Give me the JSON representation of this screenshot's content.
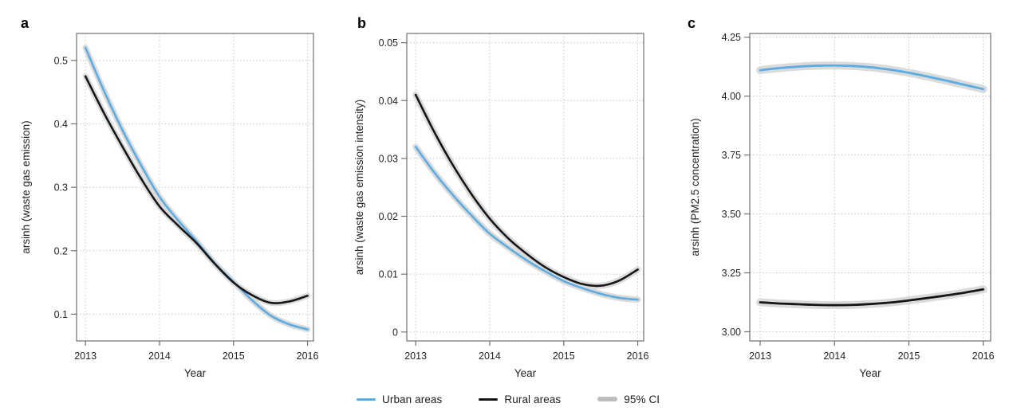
{
  "colors": {
    "urban": "#5AACE1",
    "rural": "#161616",
    "ci_band": "#DBDBDB",
    "ci_legend": "#BDBDBD"
  },
  "legend": {
    "items": [
      {
        "key": "urban",
        "label": "Urban areas"
      },
      {
        "key": "rural",
        "label": "Rural areas"
      },
      {
        "key": "ci",
        "label": "95% CI"
      }
    ]
  },
  "chart_data": [
    {
      "type": "line",
      "panel_label": "a",
      "title": "",
      "xlabel": "Year",
      "ylabel": "arsinh (waste gas emission)",
      "grid": "dotted",
      "legend_position": "bottom-center-shared",
      "x_domain": [
        2012.88,
        2016.08
      ],
      "y_domain": [
        0.0578,
        0.5425
      ],
      "x_ticks": [
        2013,
        2014,
        2015,
        2016
      ],
      "x_tick_labels": [
        "2013",
        "2014",
        "2015",
        "2016"
      ],
      "y_ticks": [
        0.1,
        0.2,
        0.3,
        0.4,
        0.5
      ],
      "y_tick_labels": [
        "0.1",
        "0.2",
        "0.3",
        "0.4",
        "0.5"
      ],
      "x": [
        2013,
        2013.25,
        2013.5,
        2013.75,
        2014,
        2014.25,
        2014.5,
        2014.75,
        2015,
        2015.25,
        2015.5,
        2015.75,
        2016
      ],
      "series": [
        {
          "name": "Urban areas",
          "color_key": "urban",
          "ci": "95% CI band",
          "values": [
            0.52,
            0.452,
            0.39,
            0.335,
            0.285,
            0.248,
            0.215,
            0.18,
            0.151,
            0.122,
            0.098,
            0.084,
            0.076
          ]
        },
        {
          "name": "Rural areas",
          "color_key": "rural",
          "ci": "95% CI band",
          "values": [
            0.475,
            0.417,
            0.364,
            0.314,
            0.27,
            0.24,
            0.212,
            0.179,
            0.15,
            0.13,
            0.118,
            0.12,
            0.129
          ]
        }
      ]
    },
    {
      "type": "line",
      "panel_label": "b",
      "title": "",
      "xlabel": "Year",
      "ylabel": "arsinh (waste gas emission intensity)",
      "grid": "dotted",
      "legend_position": "bottom-center-shared",
      "x_domain": [
        2012.88,
        2016.08
      ],
      "y_domain": [
        -0.00154,
        0.0516
      ],
      "x_ticks": [
        2013,
        2014,
        2015,
        2016
      ],
      "x_tick_labels": [
        "2013",
        "2014",
        "2015",
        "2016"
      ],
      "y_ticks": [
        0,
        0.01,
        0.02,
        0.03,
        0.04,
        0.05
      ],
      "y_tick_labels": [
        "0",
        "0.01",
        "0.02",
        "0.03",
        "0.04",
        "0.05"
      ],
      "x": [
        2013,
        2013.25,
        2013.5,
        2013.75,
        2014,
        2014.25,
        2014.5,
        2014.75,
        2015,
        2015.25,
        2015.5,
        2015.75,
        2016
      ],
      "series": [
        {
          "name": "Urban areas",
          "color_key": "urban",
          "ci": "95% CI band",
          "values": [
            0.032,
            0.0276,
            0.0237,
            0.0202,
            0.017,
            0.0146,
            0.0124,
            0.0105,
            0.0088,
            0.0076,
            0.0066,
            0.0059,
            0.0056
          ]
        },
        {
          "name": "Rural areas",
          "color_key": "rural",
          "ci": "95% CI band",
          "values": [
            0.041,
            0.0346,
            0.0289,
            0.0239,
            0.0196,
            0.0162,
            0.0135,
            0.0112,
            0.0095,
            0.0083,
            0.008,
            0.0089,
            0.0108
          ]
        }
      ]
    },
    {
      "type": "line",
      "panel_label": "c",
      "title": "",
      "xlabel": "Year",
      "ylabel": "arsinh (PM2.5 concentration)",
      "grid": "dotted",
      "legend_position": "bottom-center-shared",
      "x_domain": [
        2012.86,
        2016.1
      ],
      "y_domain": [
        2.961,
        4.266
      ],
      "x_ticks": [
        2013,
        2014,
        2015,
        2016
      ],
      "x_tick_labels": [
        "2013",
        "2014",
        "2015",
        "2016"
      ],
      "y_ticks": [
        3.0,
        3.25,
        3.5,
        3.75,
        4.0,
        4.25
      ],
      "y_tick_labels": [
        "3.00",
        "3.25",
        "3.50",
        "3.75",
        "4.00",
        "4.25"
      ],
      "x": [
        2013,
        2013.25,
        2013.5,
        2013.75,
        2014,
        2014.25,
        2014.5,
        2014.75,
        2015,
        2015.25,
        2015.5,
        2015.75,
        2016
      ],
      "series": [
        {
          "name": "Urban areas",
          "color_key": "urban",
          "ci": "95% CI band",
          "values": [
            4.11,
            4.119,
            4.125,
            4.129,
            4.13,
            4.128,
            4.122,
            4.112,
            4.099,
            4.083,
            4.066,
            4.048,
            4.03
          ]
        },
        {
          "name": "Rural areas",
          "color_key": "rural",
          "ci": "95% CI band",
          "values": [
            3.125,
            3.12,
            3.117,
            3.114,
            3.113,
            3.114,
            3.118,
            3.124,
            3.133,
            3.143,
            3.154,
            3.166,
            3.18
          ]
        }
      ]
    }
  ]
}
